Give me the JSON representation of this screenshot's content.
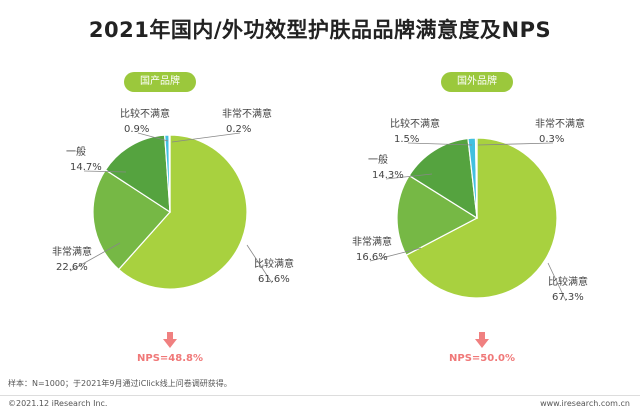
{
  "title": "2021年国内/外功效型护肤品品牌满意度及NPS",
  "colors": {
    "accent": "#9bc83c",
    "nps": "#f07878",
    "slices": [
      "#a8d13f",
      "#76b845",
      "#55a33f",
      "#42c0e0",
      "#dbe8c8"
    ]
  },
  "chart_data": [
    {
      "type": "pie",
      "title": "国产品牌",
      "slices": [
        {
          "label": "比较满意",
          "value": 61.6,
          "display": "61.6%"
        },
        {
          "label": "非常满意",
          "value": 22.6,
          "display": "22.6%"
        },
        {
          "label": "一般",
          "value": 14.7,
          "display": "14.7%"
        },
        {
          "label": "比较不满意",
          "value": 0.9,
          "display": "0.9%"
        },
        {
          "label": "非常不满意",
          "value": 0.2,
          "display": "0.2%"
        }
      ],
      "nps": "NPS=48.8%"
    },
    {
      "type": "pie",
      "title": "国外品牌",
      "slices": [
        {
          "label": "比较满意",
          "value": 67.3,
          "display": "67.3%"
        },
        {
          "label": "非常满意",
          "value": 16.6,
          "display": "16.6%"
        },
        {
          "label": "一般",
          "value": 14.3,
          "display": "14.3%"
        },
        {
          "label": "比较不满意",
          "value": 1.5,
          "display": "1.5%"
        },
        {
          "label": "非常不满意",
          "value": 0.3,
          "display": "0.3%"
        }
      ],
      "nps": "NPS=50.0%"
    }
  ],
  "footnote": "样本：N=1000；于2021年9月通过iClick线上问卷调研获得。",
  "copyright": "©2021.12 iResearch Inc.",
  "website": "www.iresearch.com.cn"
}
